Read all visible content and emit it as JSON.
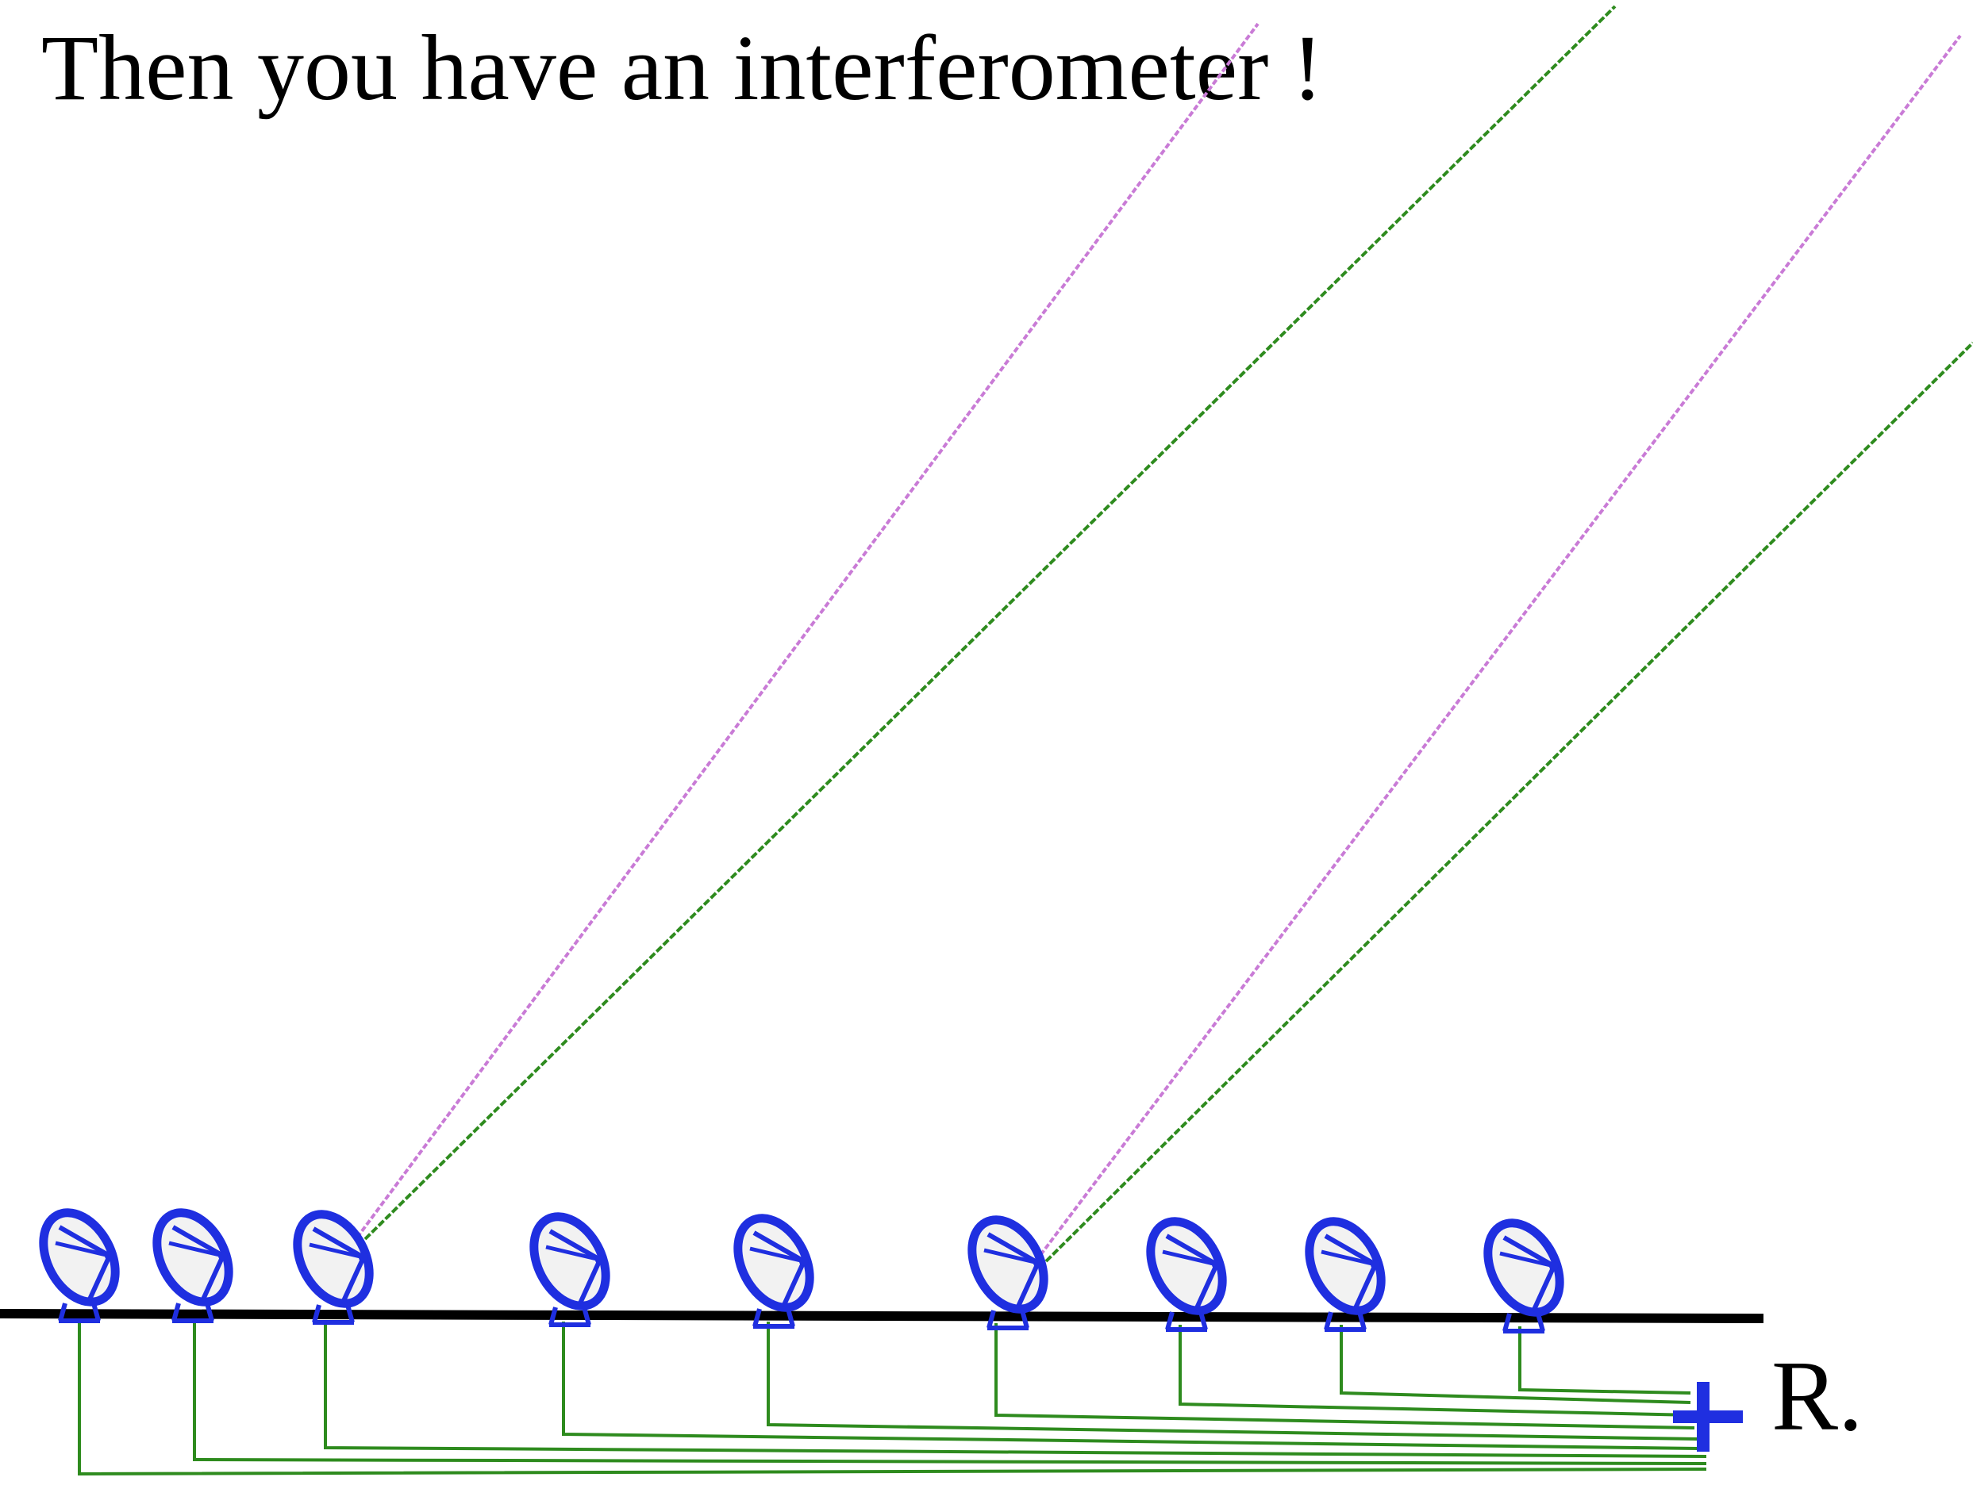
{
  "title": "Then you have an interferometer !",
  "receiver": {
    "label": "R.",
    "icon": "plus-icon"
  },
  "antennas": {
    "count": 9,
    "icon": "satellite-dish-icon"
  },
  "colors": {
    "ground": "#000000",
    "dish": "#1f2fe0",
    "dish_fill": "#f2f2f2",
    "cable": "#2e8b1e",
    "signal_green": "#2e8b1e",
    "signal_purple": "#c97bd6",
    "receiver": "#1f2fe0"
  }
}
